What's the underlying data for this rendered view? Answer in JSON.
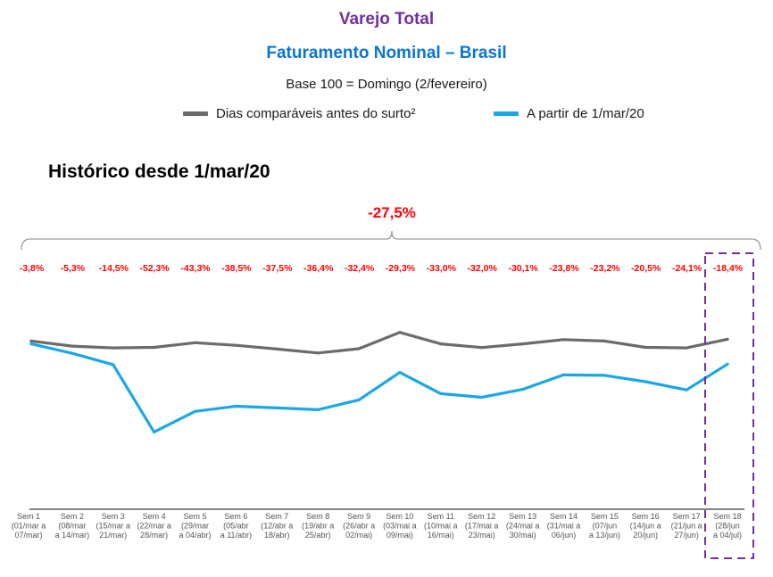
{
  "header": {
    "title": "Varejo Total",
    "subtitle": "Faturamento Nominal – Brasil",
    "base_note": "Base 100 = Domingo (2/fevereiro)",
    "section_title": "Histórico desde 1/mar/20"
  },
  "colors": {
    "title": "#7030a0",
    "subtitle": "#0b74d4",
    "series_before": "#6b6b6b",
    "series_after": "#1aa7e8",
    "variation_text": "#ff0000",
    "highlight_box": "#7030a0"
  },
  "chart_data": {
    "type": "line",
    "legend_position": "top",
    "grid": false,
    "y_axis_visible": false,
    "total_variation": "-27,5%",
    "categories": [
      {
        "week": "Sem 1",
        "range": [
          "(01/mar a",
          "07/mar)"
        ]
      },
      {
        "week": "Sem 2",
        "range": [
          "(08/mar",
          "a 14/mar)"
        ]
      },
      {
        "week": "Sem 3",
        "range": [
          "(15/mar a",
          "21/mar)"
        ]
      },
      {
        "week": "Sem 4",
        "range": [
          "(22/mar a",
          "28/mar)"
        ]
      },
      {
        "week": "Sem 5",
        "range": [
          "(29/mar",
          "a 04/abr)"
        ]
      },
      {
        "week": "Sem 6",
        "range": [
          "(05/abr",
          "a 11/abr)"
        ]
      },
      {
        "week": "Sem 7",
        "range": [
          "(12/abr a",
          "18/abr)"
        ]
      },
      {
        "week": "Sem 8",
        "range": [
          "(19/abr a",
          "25/abr)"
        ]
      },
      {
        "week": "Sem 9",
        "range": [
          "(26/abr a",
          "02/mai)"
        ]
      },
      {
        "week": "Sem 10",
        "range": [
          "(03/mai a",
          "09/mai)"
        ]
      },
      {
        "week": "Sem 11",
        "range": [
          "(10/mai a",
          "16/mai)"
        ]
      },
      {
        "week": "Sem 12",
        "range": [
          "(17/mai a",
          "23/mai)"
        ]
      },
      {
        "week": "Sem 13",
        "range": [
          "(24/mai a",
          "30/mai)"
        ]
      },
      {
        "week": "Sem 14",
        "range": [
          "(31/mai a",
          "06/jun)"
        ]
      },
      {
        "week": "Sem 15",
        "range": [
          "(07/jun",
          "a 13/jun)"
        ]
      },
      {
        "week": "Sem 16",
        "range": [
          "(14/jun a",
          "20/jun)"
        ]
      },
      {
        "week": "Sem 17",
        "range": [
          "(21/jun a",
          "27/jun)"
        ]
      },
      {
        "week": "Sem 18",
        "range": [
          "(28/jun",
          "a 04/jul)"
        ]
      }
    ],
    "variations": [
      "-3,8%",
      "-5,3%",
      "-14,5%",
      "-52,3%",
      "-43,3%",
      "-38,5%",
      "-37,5%",
      "-36,4%",
      "-32,4%",
      "-29,3%",
      "-33,0%",
      "-32,0%",
      "-30,1%",
      "-23,8%",
      "-23,2%",
      "-20,5%",
      "-24,1%",
      "-18,4%"
    ],
    "ylim": [
      0,
      120
    ],
    "series": [
      {
        "name": "Dias comparáveis antes do surto²",
        "values": [
          98,
          95,
          94,
          94.3,
          97,
          95.5,
          93.3,
          91,
          93.5,
          103,
          96.3,
          94.2,
          96.3,
          98.8,
          98,
          94.3,
          94,
          99
        ]
      },
      {
        "name": "A partir de 1/mar/20",
        "values": [
          96.3,
          90.8,
          84.2,
          45,
          57,
          60,
          59,
          58,
          63.7,
          79.7,
          67.3,
          65.2,
          69.8,
          78.3,
          78,
          74.3,
          69.5,
          84.5
        ]
      }
    ],
    "highlight_category": "Sem 18"
  }
}
